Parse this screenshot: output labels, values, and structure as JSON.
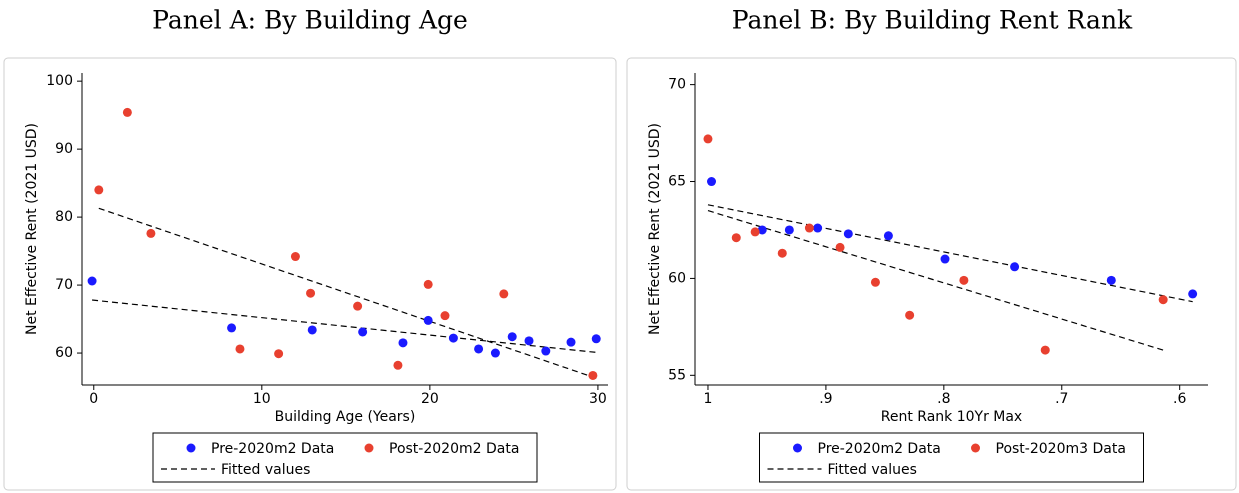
{
  "chart_data": [
    {
      "type": "scatter",
      "title": "Panel A: By Building Age",
      "x_label": "Building Age (Years)",
      "y_label": "Net Effective Rent (2021 USD)",
      "xlim": [
        -0.7,
        30.6
      ],
      "ylim": [
        55.3,
        101.2
      ],
      "xticks": [
        0,
        10,
        20,
        30
      ],
      "yticks": [
        60,
        70,
        80,
        90,
        100
      ],
      "legend": "bottom",
      "series": [
        {
          "name": "Pre-2020m2 Data",
          "color": "#1a1aff",
          "x": [
            -0.1,
            8.2,
            13.0,
            16.0,
            18.4,
            19.9,
            21.4,
            22.9,
            23.9,
            24.9,
            25.9,
            26.9,
            28.4,
            29.9
          ],
          "values": [
            70.6,
            63.7,
            63.4,
            63.1,
            61.5,
            64.8,
            62.2,
            60.6,
            60.0,
            62.4,
            61.8,
            60.3,
            61.6,
            62.1
          ]
        },
        {
          "name": "Post-2020m2 Data",
          "color": "#e8402f",
          "x": [
            0.3,
            2.0,
            3.4,
            8.7,
            11.0,
            12.0,
            12.9,
            15.7,
            18.1,
            19.9,
            20.9,
            24.4,
            29.7
          ],
          "values": [
            84.0,
            95.4,
            77.6,
            60.6,
            59.9,
            74.2,
            68.8,
            66.9,
            58.2,
            70.1,
            65.5,
            68.7,
            56.7
          ]
        }
      ],
      "fit": {
        "name": "Fitted values",
        "color": "#000000",
        "lines": [
          {
            "x": [
              -0.1,
              29.9
            ],
            "values": [
              67.8,
              60.1
            ]
          },
          {
            "x": [
              0.3,
              29.9
            ],
            "values": [
              81.3,
              56.3
            ]
          }
        ]
      }
    },
    {
      "type": "scatter",
      "title": "Panel B: By Building Rent Rank",
      "x_label": "Rent Rank 10Yr Max",
      "y_label": "Net Effective Rent (2021 USD)",
      "xlim": [
        1.011,
        0.576
      ],
      "ylim": [
        54.5,
        70.6
      ],
      "xticks": [
        1,
        {
          "value": 0.9,
          "label": ".9"
        },
        {
          "value": 0.8,
          "label": ".8"
        },
        {
          "value": 0.7,
          "label": ".7"
        },
        {
          "value": 0.6,
          "label": ".6"
        }
      ],
      "yticks": [
        55,
        60,
        65,
        70
      ],
      "legend": "bottom",
      "series": [
        {
          "name": "Pre-2020m2 Data",
          "color": "#1a1aff",
          "x": [
            0.997,
            0.954,
            0.931,
            0.907,
            0.881,
            0.847,
            0.799,
            0.74,
            0.658,
            0.589
          ],
          "values": [
            65.0,
            62.5,
            62.5,
            62.6,
            62.3,
            62.2,
            61.0,
            60.6,
            59.9,
            59.2
          ]
        },
        {
          "name": "Post-2020m3 Data",
          "color": "#e8402f",
          "x": [
            1.0,
            0.976,
            0.96,
            0.937,
            0.914,
            0.888,
            0.858,
            0.829,
            0.783,
            0.714,
            0.614
          ],
          "values": [
            67.2,
            62.1,
            62.4,
            61.3,
            62.6,
            61.6,
            59.8,
            58.1,
            59.9,
            56.3,
            58.9
          ]
        }
      ],
      "fit": {
        "name": "Fitted values",
        "color": "#000000",
        "lines": [
          {
            "x": [
              1.0,
              0.589
            ],
            "values": [
              63.8,
              58.8
            ]
          },
          {
            "x": [
              1.0,
              0.614
            ],
            "values": [
              63.5,
              56.3
            ]
          }
        ]
      }
    }
  ]
}
